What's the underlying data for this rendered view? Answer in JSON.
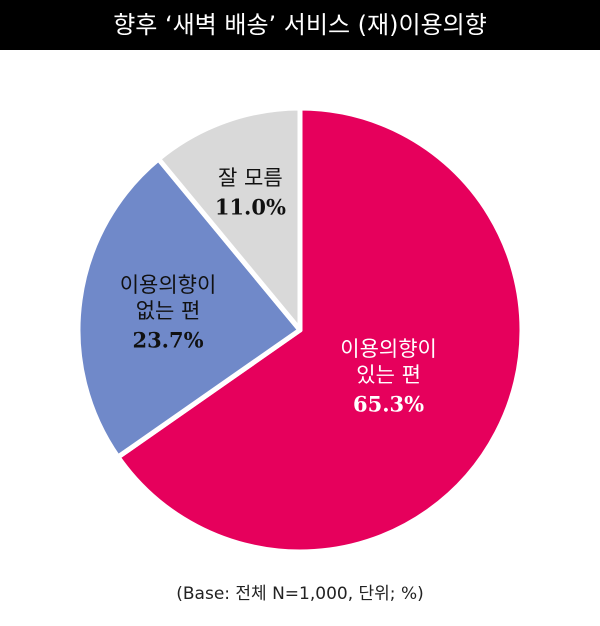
{
  "chart_data": {
    "type": "pie",
    "title": "향후 ‘새벽 배송’ 서비스 (재)이용의향",
    "categories": [
      [
        "이용의향이",
        "있는 편"
      ],
      [
        "이용의향이",
        "없는 편"
      ],
      [
        "잘 모름"
      ]
    ],
    "values": [
      65.3,
      23.7,
      11.0
    ],
    "value_labels": [
      "65.3%",
      "23.7%",
      "11.0%"
    ],
    "colors": [
      "#e6005c",
      "#7089c9",
      "#d9d9d9"
    ],
    "label_colors": [
      "#ffffff",
      "#111111",
      "#111111"
    ],
    "note": "(Base: 전체 N=1,000, 단위; %)"
  }
}
